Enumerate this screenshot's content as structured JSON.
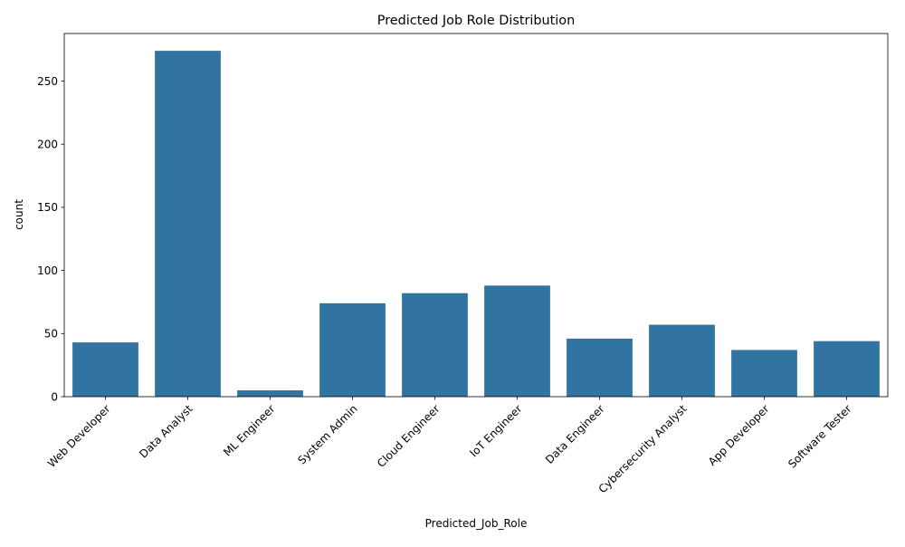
{
  "chart_data": {
    "type": "bar",
    "title": "Predicted Job Role Distribution",
    "xlabel": "Predicted_Job_Role",
    "ylabel": "count",
    "categories": [
      "Web Developer",
      "Data Analyst",
      "ML Engineer",
      "System Admin",
      "Cloud Engineer",
      "IoT Engineer",
      "Data Engineer",
      "Cybersecurity Analyst",
      "App Developer",
      "Software Tester"
    ],
    "values": [
      43,
      274,
      5,
      74,
      82,
      88,
      46,
      57,
      37,
      44
    ],
    "ylim": [
      0,
      287.7
    ],
    "yticks": [
      0,
      50,
      100,
      150,
      200,
      250
    ],
    "bar_color": "#3274a1",
    "grid": false,
    "legend": "none"
  }
}
